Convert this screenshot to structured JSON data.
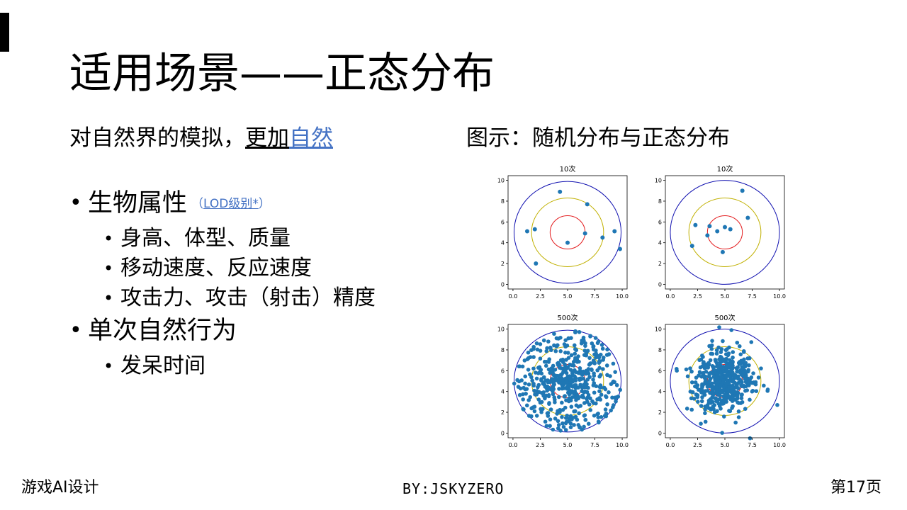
{
  "slide": {
    "title": "适用场景——正态分布",
    "lead": {
      "text": "对自然界的模拟，",
      "underlined": "更加",
      "link": "自然"
    },
    "figure_caption": "图示：随机分布与正态分布",
    "bullets": [
      {
        "label": "生物属性",
        "tag_open": "（",
        "tag_link": "LOD级别*",
        "tag_close": "）",
        "sub": [
          "身高、体型、质量",
          "移动速度、反应速度",
          "攻击力、攻击（射击）精度"
        ]
      },
      {
        "label": "单次自然行为",
        "sub": [
          "发呆时间"
        ]
      }
    ]
  },
  "footer": {
    "left": "游戏AI设计",
    "center": "BY:JSKYZERO",
    "right": "第17页"
  },
  "chart_data": [
    {
      "type": "scatter",
      "title": "10次",
      "distribution": "uniform",
      "xlim": [
        0,
        10
      ],
      "ylim": [
        0,
        10
      ],
      "xticks": [
        "0.0",
        "2.5",
        "5.0",
        "7.5",
        "10.0"
      ],
      "yticks": [
        "0",
        "2",
        "4",
        "6",
        "8",
        "10"
      ],
      "rings": [
        {
          "radius": 1.6,
          "color": "#e31a1c"
        },
        {
          "radius": 3.3,
          "color": "#c0b000"
        },
        {
          "radius": 4.9,
          "color": "#1010b0"
        }
      ],
      "points": [
        [
          4.3,
          8.9
        ],
        [
          6.8,
          7.7
        ],
        [
          1.3,
          5.1
        ],
        [
          2.0,
          5.3
        ],
        [
          9.3,
          5.1
        ],
        [
          6.6,
          4.9
        ],
        [
          8.2,
          4.5
        ],
        [
          5.0,
          4.0
        ],
        [
          9.8,
          3.4
        ],
        [
          2.1,
          2.0
        ]
      ]
    },
    {
      "type": "scatter",
      "title": "10次",
      "distribution": "normal",
      "xlim": [
        0,
        10
      ],
      "ylim": [
        0,
        10
      ],
      "xticks": [
        "0.0",
        "2.5",
        "5.0",
        "7.5",
        "10.0"
      ],
      "yticks": [
        "0",
        "2",
        "4",
        "6",
        "8",
        "10"
      ],
      "rings": [
        {
          "radius": 1.6,
          "color": "#e31a1c"
        },
        {
          "radius": 3.3,
          "color": "#c0b000"
        },
        {
          "radius": 5.0,
          "color": "#1010b0"
        }
      ],
      "points": [
        [
          6.6,
          9.0
        ],
        [
          7.1,
          6.4
        ],
        [
          2.3,
          5.7
        ],
        [
          3.6,
          5.6
        ],
        [
          4.3,
          5.1
        ],
        [
          5.0,
          5.5
        ],
        [
          5.5,
          5.3
        ],
        [
          3.4,
          4.7
        ],
        [
          2.0,
          3.7
        ],
        [
          4.8,
          3.1
        ]
      ]
    },
    {
      "type": "scatter",
      "title": "500次",
      "distribution": "uniform",
      "point_count": 500,
      "xlim": [
        0,
        10
      ],
      "ylim": [
        0,
        10
      ],
      "xticks": [
        "0.0",
        "2.5",
        "5.0",
        "7.5",
        "10.0"
      ],
      "yticks": [
        "0",
        "2",
        "4",
        "6",
        "8",
        "10"
      ],
      "rings": [
        {
          "radius": 1.6,
          "color": "#e31a1c"
        },
        {
          "radius": 3.3,
          "color": "#c0b000"
        },
        {
          "radius": 4.9,
          "color": "#1010b0"
        }
      ]
    },
    {
      "type": "scatter",
      "title": "500次",
      "distribution": "normal",
      "point_count": 500,
      "xlim": [
        0,
        10
      ],
      "ylim": [
        0,
        10
      ],
      "xticks": [
        "0.0",
        "2.5",
        "5.0",
        "7.5",
        "10.0"
      ],
      "yticks": [
        "0",
        "2",
        "4",
        "6",
        "8",
        "10"
      ],
      "rings": [
        {
          "radius": 1.6,
          "color": "#e31a1c"
        },
        {
          "radius": 3.3,
          "color": "#c0b000"
        },
        {
          "radius": 5.0,
          "color": "#1010b0"
        }
      ],
      "extra_points": [
        [
          5.6,
          9.9
        ],
        [
          7.3,
          -0.5
        ],
        [
          9.8,
          2.7
        ],
        [
          0.6,
          6.0
        ],
        [
          2.8,
          0.9
        ]
      ]
    }
  ],
  "colors": {
    "point": "#1f77b4",
    "link": "#4472c4"
  }
}
